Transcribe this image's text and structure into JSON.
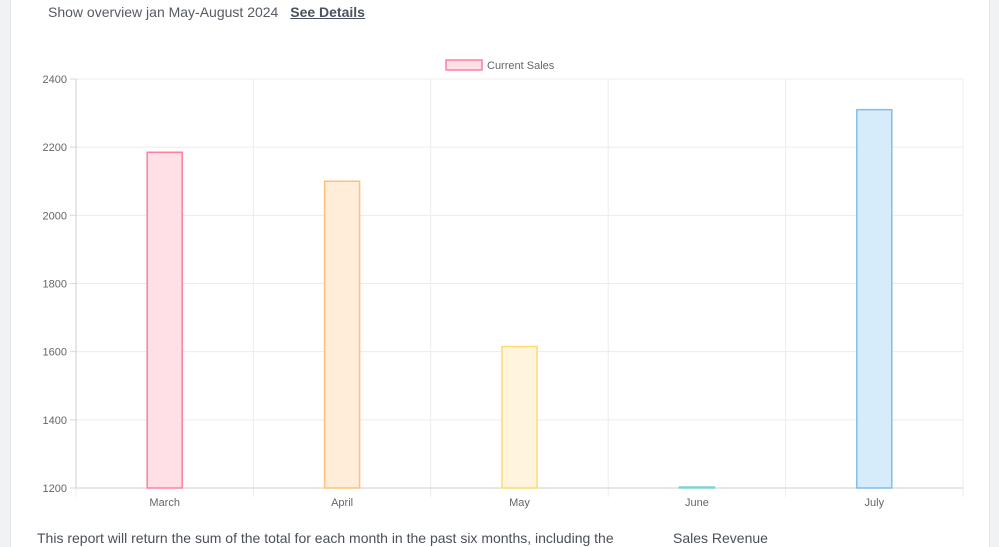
{
  "header": {
    "overview_text": "Show overview jan May-August 2024",
    "see_details_label": "See Details"
  },
  "footer": {
    "report_text": "This report will return the sum of the total for each month in the past six months, including the",
    "sales_revenue_label": "Sales Revenue"
  },
  "chart_data": {
    "type": "bar",
    "categories": [
      "March",
      "April",
      "May",
      "June",
      "July"
    ],
    "series": [
      {
        "name": "Current Sales",
        "values": [
          2185,
          2100,
          1615,
          1200,
          2310
        ]
      }
    ],
    "ylim": [
      1200,
      2400
    ],
    "yticks": [
      1200,
      1400,
      1600,
      1800,
      2000,
      2200,
      2400
    ],
    "legend_position": "top-center",
    "grid": true,
    "bar_fills": [
      "#ffe0e6",
      "#ffecd9",
      "#fff5dd",
      "#dbf2f2",
      "#d7ecfb"
    ],
    "bar_strokes": [
      "#ff7f9b",
      "#ffc078",
      "#ffd970",
      "#7fd3d3",
      "#7fbfeb"
    ]
  }
}
